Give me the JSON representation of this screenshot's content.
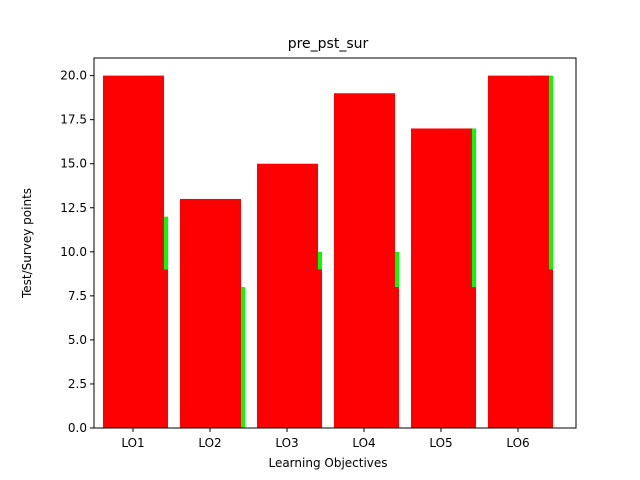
{
  "chart_data": {
    "type": "bar",
    "title": "pre_pst_sur",
    "xlabel": "Learning Objectives",
    "ylabel": "Test/Survey points",
    "categories": [
      "LO1",
      "LO2",
      "LO3",
      "LO4",
      "LO5",
      "LO6"
    ],
    "ylim": [
      0,
      21
    ],
    "yticks": [
      "0.0",
      "2.5",
      "5.0",
      "7.5",
      "10.0",
      "12.5",
      "15.0",
      "17.5",
      "20.0"
    ],
    "grid": false,
    "series": [
      {
        "values": [
          12,
          8,
          10,
          10,
          17,
          20
        ],
        "color": "#00ff00"
      },
      {
        "values": [
          9,
          0,
          9,
          8,
          8,
          9
        ],
        "color": "#ff0000"
      },
      {
        "values": [
          20,
          13,
          15,
          19,
          17,
          20
        ],
        "color": "#ff0000"
      },
      {
        "values": [
          0,
          0,
          0,
          0,
          16,
          18
        ],
        "color": "#ff0000"
      }
    ]
  }
}
